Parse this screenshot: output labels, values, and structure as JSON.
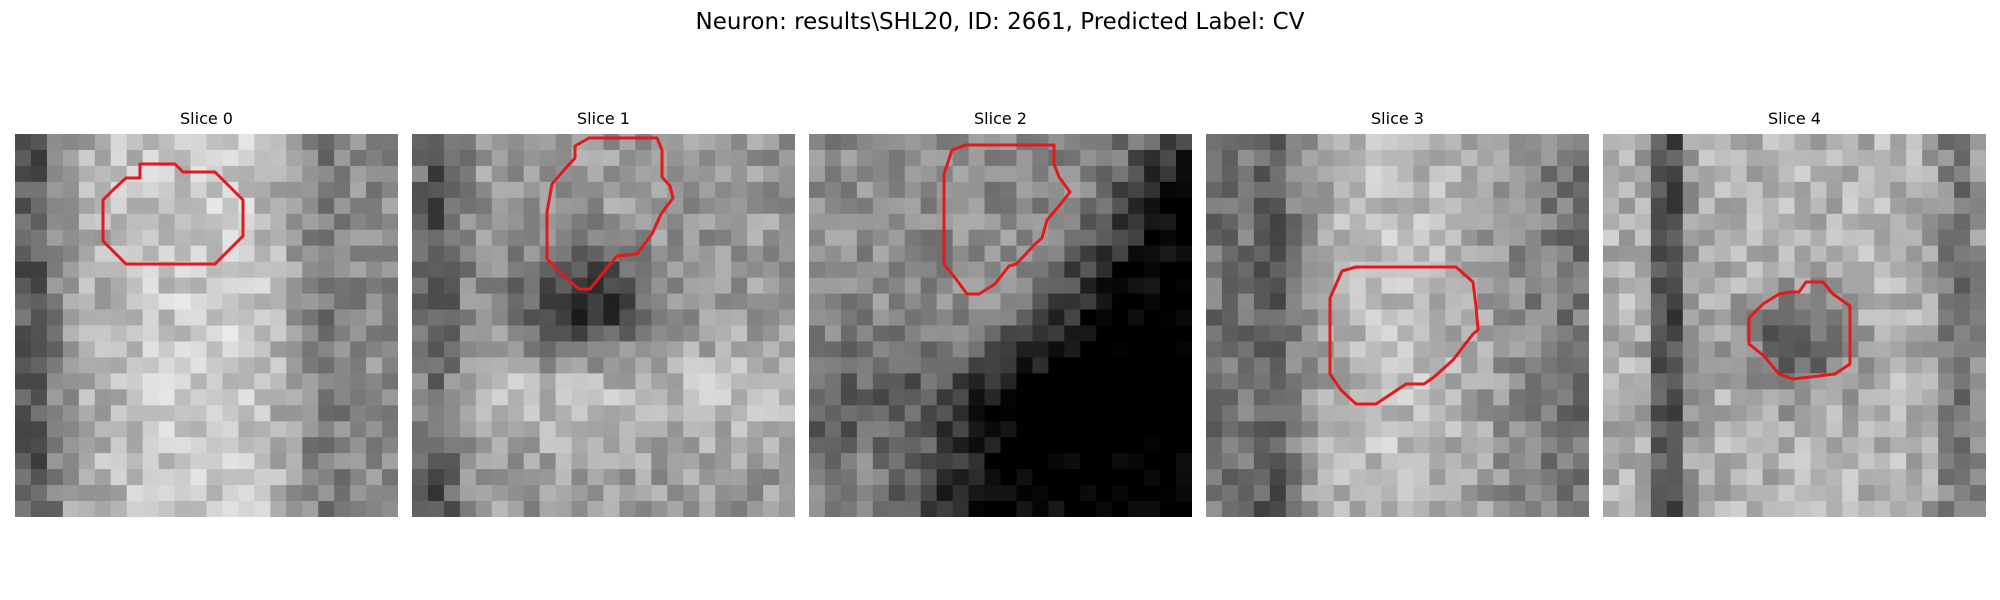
{
  "figure": {
    "title": "Neuron: results\\SHL20, ID: 2661, Predicted Label: CV",
    "contour_color": "#e31a1c",
    "panels": [
      {
        "title": "Slice 0"
      },
      {
        "title": "Slice 1"
      },
      {
        "title": "Slice 2"
      },
      {
        "title": "Slice 3"
      },
      {
        "title": "Slice 4"
      }
    ]
  }
}
